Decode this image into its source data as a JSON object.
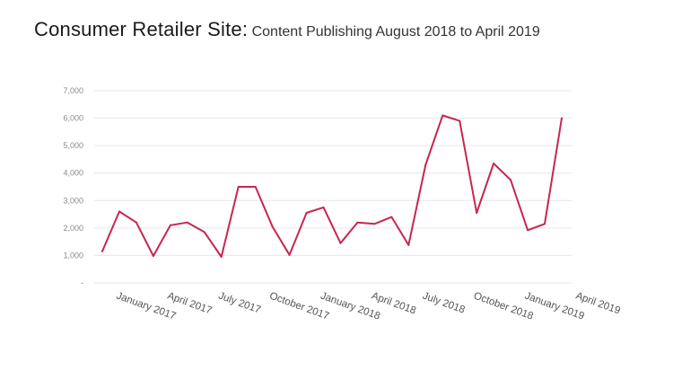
{
  "header": {
    "title": "Consumer Retailer Site:",
    "subtitle": "Content Publishing August 2018 to April 2019"
  },
  "chart_data": {
    "type": "line",
    "title": "Consumer Retailer Site:",
    "subtitle": "Content Publishing August 2018 to April 2019",
    "xlabel": "",
    "ylabel": "",
    "ylim": [
      0,
      7000
    ],
    "y_ticks": [
      "-",
      "1,000",
      "2,000",
      "3,000",
      "4,000",
      "5,000",
      "6,000",
      "7,000"
    ],
    "x_tick_labels": [
      "January 2017",
      "April 2017",
      "July 2017",
      "October 2017",
      "January 2018",
      "April 2018",
      "July 2018",
      "October 2018",
      "January 2019",
      "April 2019"
    ],
    "grid": true,
    "legend": "none",
    "line_color": "#c8264f",
    "x": [
      "2016-12",
      "2017-01",
      "2017-02",
      "2017-03",
      "2017-04",
      "2017-05",
      "2017-06",
      "2017-07",
      "2017-08",
      "2017-09",
      "2017-10",
      "2017-11",
      "2017-12",
      "2018-01",
      "2018-02",
      "2018-03",
      "2018-04",
      "2018-05",
      "2018-06",
      "2018-07",
      "2018-08",
      "2018-09",
      "2018-10",
      "2018-11",
      "2018-12",
      "2019-01",
      "2019-02",
      "2019-03"
    ],
    "values": [
      1150,
      2600,
      2200,
      980,
      2100,
      2200,
      1850,
      950,
      3500,
      3500,
      2050,
      1020,
      2550,
      2750,
      1450,
      2200,
      2150,
      2400,
      1380,
      4300,
      6100,
      5900,
      2550,
      4350,
      3750,
      1920,
      2150,
      6000
    ]
  }
}
